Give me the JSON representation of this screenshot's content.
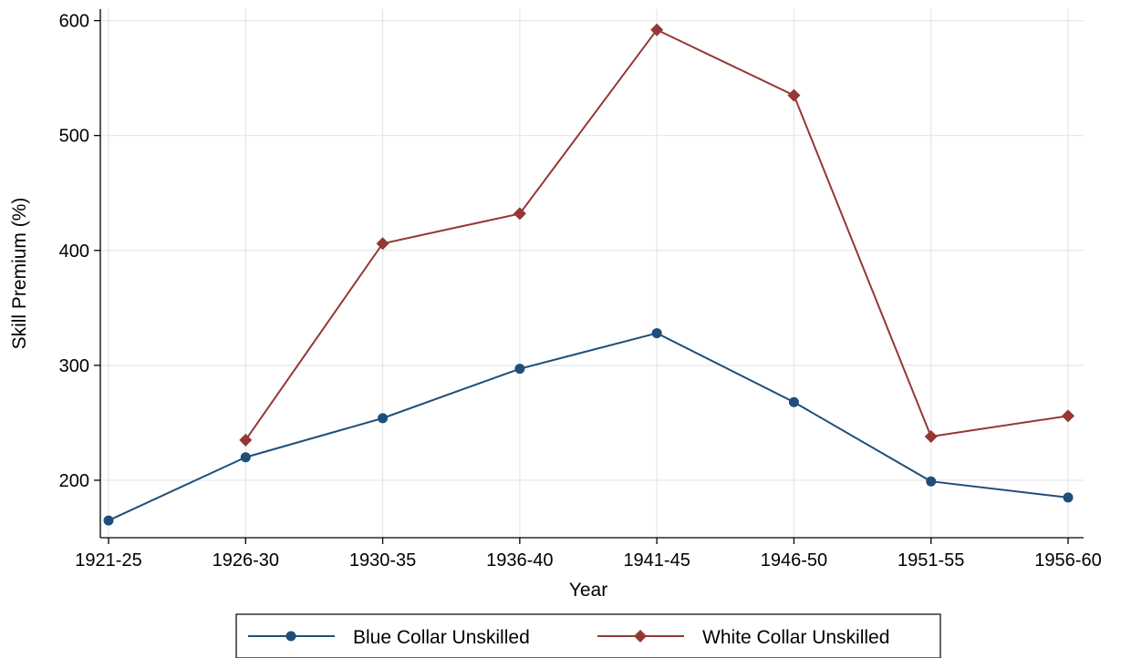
{
  "chart_data": {
    "type": "line",
    "title": "",
    "xlabel": "Year",
    "ylabel": "Skill Premium (%)",
    "categories": [
      "1921-25",
      "1926-30",
      "1930-35",
      "1936-40",
      "1941-45",
      "1946-50",
      "1951-55",
      "1956-60"
    ],
    "ylim": [
      150,
      610
    ],
    "yticks": [
      200,
      300,
      400,
      500,
      600
    ],
    "grid": true,
    "legend": "bottom",
    "series": [
      {
        "name": "Blue Collar Unskilled",
        "color": "#1f4e79",
        "marker": "circle",
        "values": [
          165,
          220,
          254,
          297,
          328,
          268,
          199,
          185
        ]
      },
      {
        "name": "White Collar Unskilled",
        "color": "#953735",
        "marker": "diamond",
        "values": [
          null,
          235,
          406,
          432,
          592,
          535,
          238,
          256
        ]
      }
    ]
  }
}
